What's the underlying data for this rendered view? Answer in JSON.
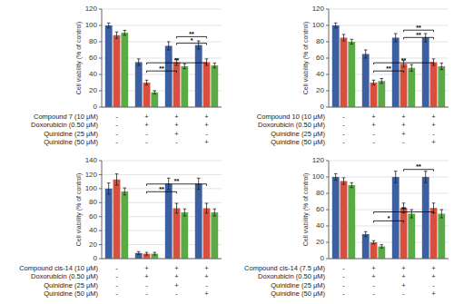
{
  "chart_data": [
    {
      "type": "bar",
      "categories": [
        null,
        null,
        null,
        null
      ],
      "series": [
        {
          "color": "#3b5fa0",
          "values": [
            100,
            55,
            75,
            76
          ],
          "errors": [
            3,
            4,
            5,
            5
          ]
        },
        {
          "color": "#d94f3d",
          "values": [
            88,
            30,
            55,
            55
          ],
          "errors": [
            4,
            3,
            4,
            4
          ]
        },
        {
          "color": "#5aaa45",
          "values": [
            91,
            18,
            50,
            51
          ],
          "errors": [
            3,
            2,
            3,
            3
          ]
        }
      ],
      "row_labels": [
        "Compound 7 (10 μM)",
        "Doxorubicin (0.50 μM)",
        "Quinidine (25 μM)",
        "Quinidine (50 μM)"
      ],
      "signs": [
        [
          "-",
          "-",
          "-",
          "-"
        ],
        [
          "+",
          "+",
          "-",
          "-"
        ],
        [
          "+",
          "+",
          "+",
          "-"
        ],
        [
          "+",
          "+",
          "-",
          "+"
        ]
      ],
      "annotations": [
        {
          "from": 1,
          "to": 2,
          "y": 42,
          "label": "**"
        },
        {
          "from": 1,
          "to": 3,
          "y": 52,
          "label": "**"
        },
        {
          "from": 2,
          "to": 3,
          "y": 84,
          "label": "**"
        },
        {
          "from": 2,
          "to": 3,
          "y": 76,
          "label": "*"
        }
      ],
      "ylabel": "Cell viability (% of control)",
      "ylim": [
        0,
        120
      ],
      "yticks": [
        0,
        20,
        40,
        60,
        80,
        100,
        120
      ],
      "grid": true
    },
    {
      "type": "bar",
      "categories": [
        null,
        null,
        null,
        null
      ],
      "series": [
        {
          "color": "#3b5fa0",
          "values": [
            100,
            65,
            85,
            85
          ],
          "errors": [
            3,
            5,
            5,
            5
          ]
        },
        {
          "color": "#d94f3d",
          "values": [
            85,
            30,
            53,
            55
          ],
          "errors": [
            4,
            3,
            4,
            4
          ]
        },
        {
          "color": "#5aaa45",
          "values": [
            80,
            32,
            48,
            50
          ],
          "errors": [
            3,
            3,
            4,
            4
          ]
        }
      ],
      "row_labels": [
        "Compound 10 (10 μM)",
        "Doxorubicin (0.50 μM)",
        "Quinidine (25 μM)",
        "Quinidine (50 μM)"
      ],
      "signs": [
        [
          "-",
          "-",
          "-",
          "-"
        ],
        [
          "+",
          "+",
          "-",
          "-"
        ],
        [
          "+",
          "+",
          "+",
          "-"
        ],
        [
          "+",
          "+",
          "-",
          "+"
        ]
      ],
      "annotations": [
        {
          "from": 1,
          "to": 2,
          "y": 42,
          "label": "**"
        },
        {
          "from": 1,
          "to": 3,
          "y": 52,
          "label": "**"
        },
        {
          "from": 2,
          "to": 3,
          "y": 92,
          "label": "**"
        },
        {
          "from": 2,
          "to": 3,
          "y": 83,
          "label": "**"
        }
      ],
      "ylabel": "Cell viability (% of control)",
      "ylim": [
        0,
        120
      ],
      "yticks": [
        0,
        20,
        40,
        60,
        80,
        100,
        120
      ],
      "grid": true
    },
    {
      "type": "bar",
      "categories": [
        null,
        null,
        null,
        null
      ],
      "series": [
        {
          "color": "#3b5fa0",
          "values": [
            100,
            8,
            107,
            107
          ],
          "errors": [
            8,
            2,
            8,
            8
          ]
        },
        {
          "color": "#d94f3d",
          "values": [
            113,
            7,
            72,
            72
          ],
          "errors": [
            8,
            2,
            7,
            7
          ]
        },
        {
          "color": "#5aaa45",
          "values": [
            96,
            7,
            66,
            66
          ],
          "errors": [
            5,
            2,
            5,
            5
          ]
        }
      ],
      "row_labels": [
        "Compound cis-14 (10 μM)",
        "Doxorubicin (0.50 μM)",
        "Quinidine (25 μM)",
        "Quinidine (50 μM)"
      ],
      "signs": [
        [
          "-",
          "-",
          "-",
          "-"
        ],
        [
          "+",
          "+",
          "-",
          "-"
        ],
        [
          "+",
          "+",
          "+",
          "-"
        ],
        [
          "+",
          "+",
          "-",
          "+"
        ]
      ],
      "annotations": [
        {
          "from": 1,
          "to": 2,
          "y": 93,
          "label": "**"
        },
        {
          "from": 1,
          "to": 3,
          "y": 104,
          "label": "**"
        }
      ],
      "ylabel": "Cell viability (% of control)",
      "ylim": [
        0,
        140
      ],
      "yticks": [
        0,
        20,
        40,
        60,
        80,
        100,
        120,
        140
      ],
      "grid": true
    },
    {
      "type": "bar",
      "categories": [
        null,
        null,
        null,
        null
      ],
      "series": [
        {
          "color": "#3b5fa0",
          "values": [
            100,
            30,
            100,
            100
          ],
          "errors": [
            4,
            3,
            7,
            7
          ]
        },
        {
          "color": "#d94f3d",
          "values": [
            95,
            20,
            62,
            62
          ],
          "errors": [
            4,
            2,
            6,
            6
          ]
        },
        {
          "color": "#5aaa45",
          "values": [
            90,
            15,
            55,
            55
          ],
          "errors": [
            3,
            2,
            5,
            5
          ]
        }
      ],
      "row_labels": [
        "Compound cis-14 (7.5 μM)",
        "Doxorubicin (0.50 μM)",
        "Quinidine (25 μM)",
        "Quinidine (50 μM)"
      ],
      "signs": [
        [
          "-",
          "-",
          "-",
          "-"
        ],
        [
          "+",
          "+",
          "-",
          "-"
        ],
        [
          "+",
          "+",
          "+",
          "-"
        ],
        [
          "+",
          "+",
          "-",
          "+"
        ]
      ],
      "annotations": [
        {
          "from": 1,
          "to": 2,
          "y": 44,
          "label": "*"
        },
        {
          "from": 1,
          "to": 3,
          "y": 55,
          "label": "**"
        },
        {
          "from": 2,
          "to": 3,
          "y": 107,
          "label": "**"
        }
      ],
      "ylabel": "Cell viability (% of control)",
      "ylim": [
        0,
        120
      ],
      "yticks": [
        0,
        20,
        40,
        60,
        80,
        100,
        120
      ],
      "grid": true
    }
  ]
}
